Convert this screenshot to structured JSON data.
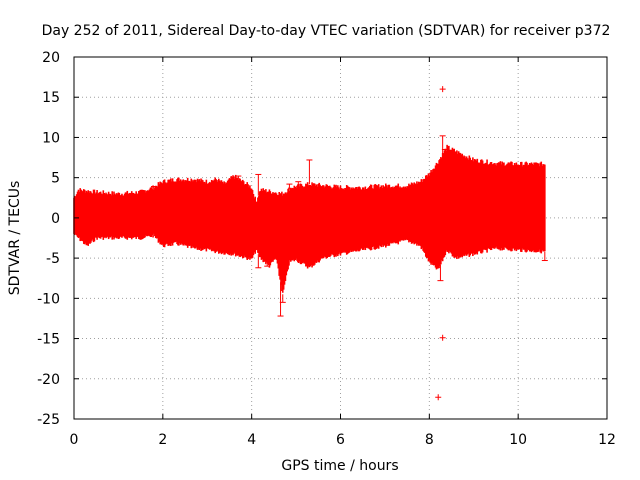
{
  "chart_data": {
    "type": "scatter",
    "title": "Day 252 of 2011, Sidereal Day-to-day VTEC variation (SDTVAR) for receiver p372",
    "xlabel": "GPS time / hours",
    "ylabel": "SDTVAR / TECUs",
    "xlim": [
      0,
      12
    ],
    "ylim": [
      -25,
      20
    ],
    "xticks": [
      0,
      2,
      4,
      6,
      8,
      10,
      12
    ],
    "yticks": [
      -25,
      -20,
      -15,
      -10,
      -5,
      0,
      5,
      10,
      15,
      20
    ],
    "grid": true,
    "grid_style": "dotted",
    "legend": "none",
    "series": [
      {
        "name": "SDTVAR p372",
        "color": "#ff0000",
        "marker": "plus",
        "description": "dense error-bar band of day-to-day VTEC differences",
        "upper_envelope": [
          [
            0.0,
            2.5
          ],
          [
            0.1,
            3.5
          ],
          [
            0.5,
            3.2
          ],
          [
            1.0,
            3.0
          ],
          [
            1.5,
            3.2
          ],
          [
            1.8,
            3.8
          ],
          [
            2.0,
            4.5
          ],
          [
            2.3,
            4.8
          ],
          [
            2.7,
            4.8
          ],
          [
            3.0,
            4.5
          ],
          [
            3.2,
            4.8
          ],
          [
            3.4,
            4.2
          ],
          [
            3.6,
            5.2
          ],
          [
            3.8,
            4.5
          ],
          [
            4.0,
            3.8
          ],
          [
            4.1,
            2.0
          ],
          [
            4.2,
            3.5
          ],
          [
            4.5,
            3.2
          ],
          [
            4.7,
            3.0
          ],
          [
            4.9,
            3.8
          ],
          [
            5.3,
            4.2
          ],
          [
            6.0,
            3.8
          ],
          [
            6.5,
            3.8
          ],
          [
            7.0,
            4.0
          ],
          [
            7.5,
            4.0
          ],
          [
            7.8,
            4.5
          ],
          [
            8.0,
            5.5
          ],
          [
            8.2,
            7.0
          ],
          [
            8.4,
            8.8
          ],
          [
            8.7,
            8.0
          ],
          [
            9.0,
            7.2
          ],
          [
            9.5,
            6.8
          ],
          [
            10.0,
            6.7
          ],
          [
            10.6,
            6.7
          ]
        ],
        "lower_envelope": [
          [
            0.0,
            -2.0
          ],
          [
            0.1,
            -2.5
          ],
          [
            0.3,
            -3.5
          ],
          [
            0.5,
            -2.5
          ],
          [
            1.0,
            -2.5
          ],
          [
            1.5,
            -2.5
          ],
          [
            1.8,
            -2.2
          ],
          [
            2.0,
            -3.5
          ],
          [
            2.3,
            -3.2
          ],
          [
            2.7,
            -3.8
          ],
          [
            3.0,
            -4.0
          ],
          [
            3.3,
            -4.3
          ],
          [
            3.6,
            -4.5
          ],
          [
            3.9,
            -5.0
          ],
          [
            4.0,
            -5.2
          ],
          [
            4.1,
            -4.0
          ],
          [
            4.2,
            -5.0
          ],
          [
            4.4,
            -6.0
          ],
          [
            4.55,
            -5.0
          ],
          [
            4.7,
            -9.5
          ],
          [
            4.85,
            -5.5
          ],
          [
            5.0,
            -5.2
          ],
          [
            5.3,
            -6.2
          ],
          [
            5.6,
            -5.0
          ],
          [
            6.0,
            -4.5
          ],
          [
            6.5,
            -4.0
          ],
          [
            7.0,
            -3.5
          ],
          [
            7.5,
            -2.8
          ],
          [
            7.8,
            -3.5
          ],
          [
            8.0,
            -5.5
          ],
          [
            8.2,
            -6.5
          ],
          [
            8.4,
            -4.0
          ],
          [
            8.6,
            -5.0
          ],
          [
            9.0,
            -4.5
          ],
          [
            9.5,
            -3.8
          ],
          [
            10.0,
            -4.0
          ],
          [
            10.6,
            -4.2
          ]
        ],
        "spikes": [
          [
            1.8,
            3.9
          ],
          [
            3.7,
            5.2
          ],
          [
            4.15,
            5.4
          ],
          [
            4.15,
            -6.2
          ],
          [
            4.35,
            -6.0
          ],
          [
            4.65,
            -12.2
          ],
          [
            4.7,
            -10.5
          ],
          [
            4.85,
            4.2
          ],
          [
            5.05,
            4.5
          ],
          [
            5.3,
            7.2
          ],
          [
            8.25,
            -7.8
          ],
          [
            8.3,
            10.2
          ],
          [
            8.35,
            8.5
          ],
          [
            10.6,
            -5.3
          ]
        ],
        "outliers": [
          [
            8.3,
            16.0
          ],
          [
            8.3,
            -14.9
          ],
          [
            8.2,
            -22.3
          ]
        ]
      }
    ]
  }
}
